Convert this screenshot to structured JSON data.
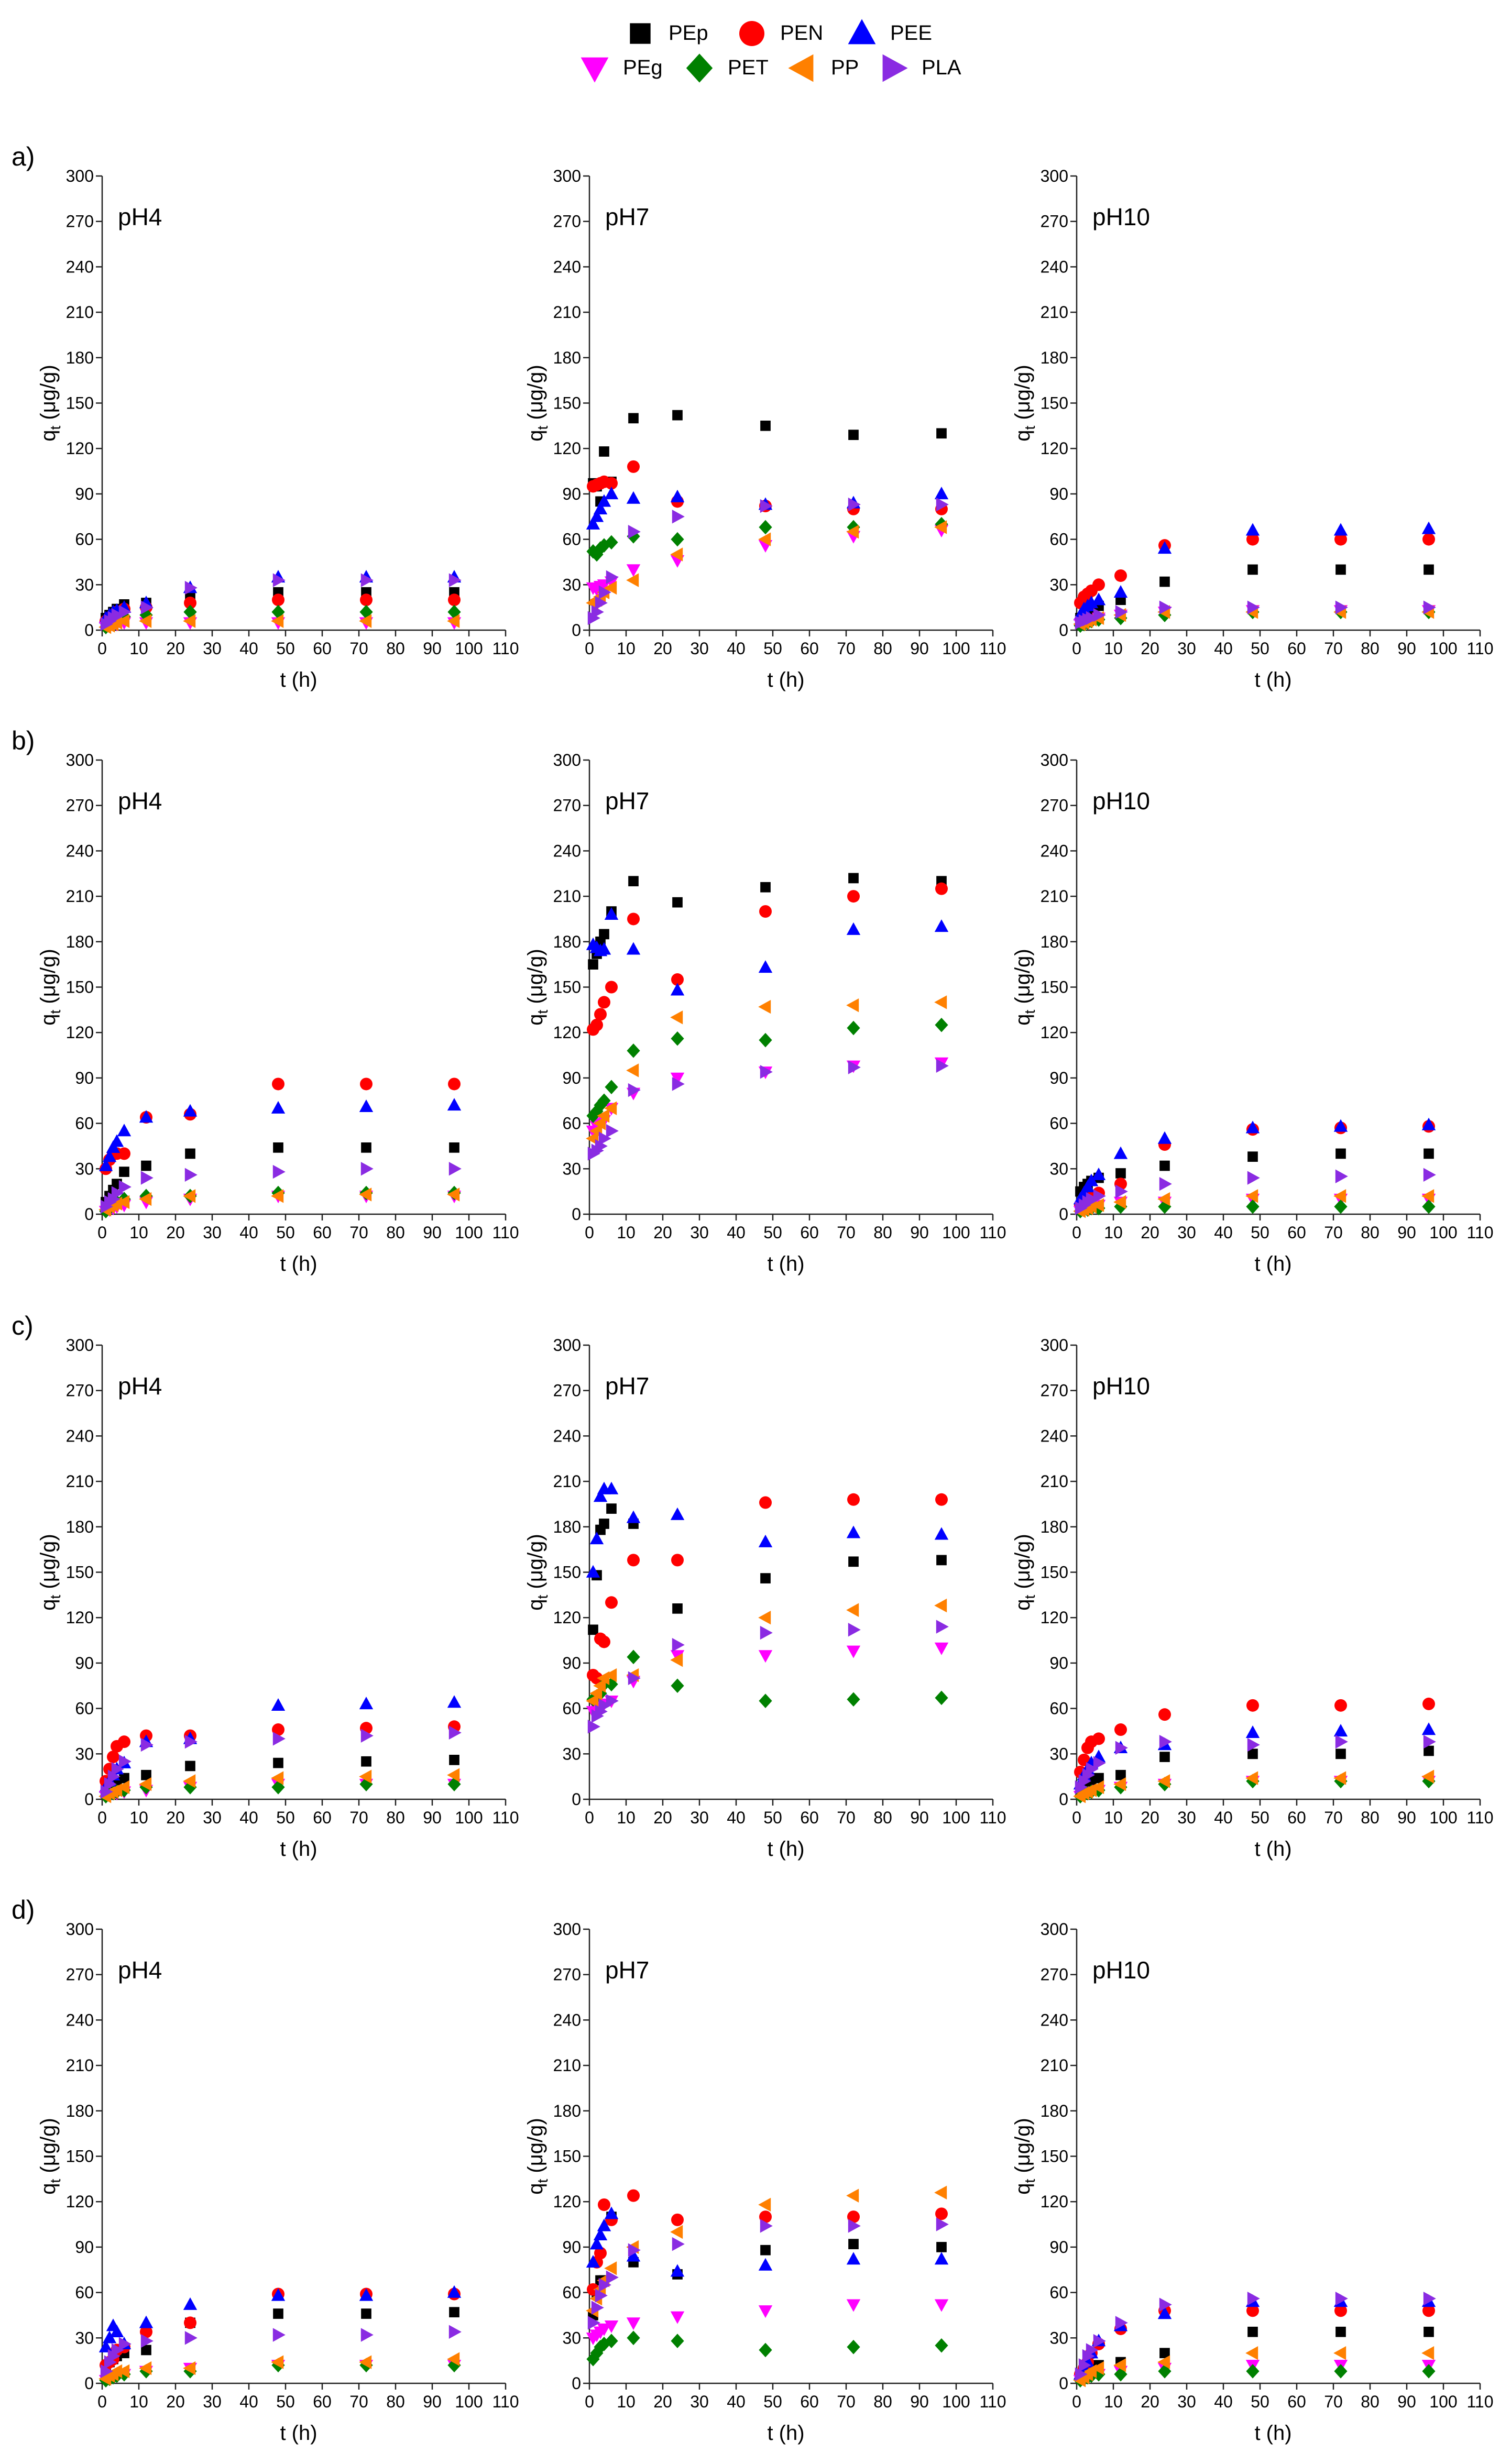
{
  "figure": {
    "legend": [
      {
        "label": "PEp",
        "color": "#000000",
        "marker": "square"
      },
      {
        "label": "PEN",
        "color": "#ff0000",
        "marker": "circle"
      },
      {
        "label": "PEE",
        "color": "#0000ff",
        "marker": "triangle-up"
      },
      {
        "label": "PEg",
        "color": "#ff00ff",
        "marker": "triangle-down"
      },
      {
        "label": "PET",
        "color": "#008000",
        "marker": "diamond"
      },
      {
        "label": "PP",
        "color": "#ff8000",
        "marker": "triangle-left"
      },
      {
        "label": "PLA",
        "color": "#8a2be2",
        "marker": "triangle-right"
      }
    ],
    "row_labels": [
      "a)",
      "b)",
      "c)",
      "d)"
    ]
  },
  "chart_data": {
    "type": "scatter",
    "xlabel": "t (h)",
    "ylabel": "qt (μg/g)",
    "ylabel_main": "q",
    "ylabel_sub": "t",
    "ylabel_rest": " (μg/g)",
    "xlim": [
      0,
      110
    ],
    "ylim": [
      0,
      300
    ],
    "xticks": [
      0,
      10,
      20,
      30,
      40,
      50,
      60,
      70,
      80,
      90,
      100,
      110
    ],
    "yticks": [
      0,
      30,
      60,
      90,
      120,
      150,
      180,
      210,
      240,
      270,
      300
    ],
    "times": [
      1,
      2,
      3,
      4,
      6,
      12,
      24,
      48,
      72,
      96
    ],
    "panels": [
      {
        "row": "a)",
        "title": "pH4",
        "series": {
          "PEp": [
            8,
            10,
            12,
            14,
            17,
            18,
            22,
            25,
            25,
            25
          ],
          "PEN": [
            6,
            8,
            10,
            12,
            14,
            15,
            18,
            20,
            20,
            20
          ],
          "PEE": [
            8,
            10,
            12,
            13,
            15,
            18,
            28,
            35,
            35,
            35
          ],
          "PEg": [
            2,
            3,
            4,
            4,
            5,
            5,
            5,
            5,
            5,
            5
          ],
          "PET": [
            2,
            4,
            6,
            8,
            9,
            10,
            12,
            12,
            12,
            12
          ],
          "PP": [
            2,
            3,
            4,
            5,
            6,
            6,
            6,
            6,
            6,
            6
          ],
          "PLA": [
            4,
            6,
            8,
            10,
            12,
            15,
            28,
            33,
            33,
            33
          ]
        }
      },
      {
        "row": "a)",
        "title": "pH7",
        "series": {
          "PEp": [
            97,
            95,
            85,
            118,
            98,
            140,
            142,
            135,
            129,
            130
          ],
          "PEN": [
            95,
            96,
            97,
            98,
            97,
            108,
            85,
            82,
            80,
            80
          ],
          "PEE": [
            70,
            75,
            80,
            85,
            90,
            87,
            88,
            83,
            84,
            90
          ],
          "PEg": [
            28,
            27,
            29,
            30,
            32,
            40,
            46,
            56,
            62,
            66
          ],
          "PET": [
            52,
            50,
            54,
            56,
            58,
            62,
            60,
            68,
            68,
            70
          ],
          "PP": [
            18,
            20,
            22,
            25,
            28,
            33,
            50,
            60,
            65,
            68
          ],
          "PLA": [
            8,
            12,
            18,
            25,
            35,
            65,
            75,
            82,
            83,
            83
          ]
        }
      },
      {
        "row": "a)",
        "title": "pH10",
        "series": {
          "PEp": [
            8,
            10,
            12,
            14,
            16,
            20,
            32,
            40,
            40,
            40
          ],
          "PEN": [
            18,
            22,
            24,
            26,
            30,
            36,
            56,
            60,
            60,
            60
          ],
          "PEE": [
            10,
            14,
            16,
            18,
            20,
            25,
            54,
            66,
            66,
            67
          ],
          "PEg": [
            4,
            5,
            6,
            7,
            8,
            10,
            12,
            13,
            13,
            13
          ],
          "PET": [
            3,
            4,
            5,
            6,
            7,
            8,
            10,
            12,
            12,
            12
          ],
          "PP": [
            4,
            5,
            6,
            7,
            8,
            10,
            12,
            12,
            12,
            12
          ],
          "PLA": [
            5,
            6,
            7,
            8,
            10,
            12,
            15,
            15,
            15,
            15
          ]
        }
      },
      {
        "row": "b)",
        "title": "pH4",
        "series": {
          "PEp": [
            8,
            12,
            16,
            20,
            28,
            32,
            40,
            44,
            44,
            44
          ],
          "PEN": [
            30,
            36,
            40,
            40,
            40,
            64,
            66,
            86,
            86,
            86
          ],
          "PEE": [
            32,
            38,
            44,
            48,
            55,
            64,
            68,
            70,
            71,
            72
          ],
          "PEg": [
            2,
            3,
            4,
            5,
            6,
            8,
            10,
            12,
            12,
            12
          ],
          "PET": [
            2,
            4,
            6,
            8,
            10,
            12,
            12,
            14,
            14,
            14
          ],
          "PP": [
            3,
            5,
            6,
            7,
            8,
            10,
            12,
            12,
            13,
            13
          ],
          "PLA": [
            5,
            8,
            10,
            14,
            18,
            24,
            26,
            28,
            30,
            30
          ]
        }
      },
      {
        "row": "b)",
        "title": "pH7",
        "series": {
          "PEp": [
            165,
            172,
            180,
            185,
            200,
            220,
            206,
            216,
            222,
            220
          ],
          "PEN": [
            122,
            125,
            132,
            140,
            150,
            195,
            155,
            200,
            210,
            215
          ],
          "PEE": [
            178,
            176,
            174,
            175,
            198,
            175,
            148,
            163,
            188,
            190
          ],
          "PEg": [
            55,
            58,
            60,
            62,
            70,
            80,
            90,
            94,
            98,
            100
          ],
          "PET": [
            65,
            68,
            72,
            75,
            84,
            108,
            116,
            115,
            123,
            125
          ],
          "PP": [
            50,
            55,
            60,
            65,
            70,
            95,
            130,
            137,
            138,
            140
          ],
          "PLA": [
            40,
            42,
            45,
            50,
            55,
            82,
            86,
            94,
            97,
            98
          ]
        }
      },
      {
        "row": "b)",
        "title": "pH10",
        "series": {
          "PEp": [
            15,
            18,
            20,
            22,
            24,
            27,
            32,
            38,
            40,
            40
          ],
          "PEN": [
            6,
            8,
            10,
            12,
            14,
            20,
            46,
            56,
            57,
            58
          ],
          "PEE": [
            10,
            14,
            18,
            22,
            26,
            40,
            50,
            57,
            58,
            59
          ],
          "PEg": [
            2,
            3,
            4,
            5,
            6,
            8,
            8,
            10,
            10,
            10
          ],
          "PET": [
            2,
            3,
            3,
            4,
            4,
            5,
            5,
            5,
            5,
            5
          ],
          "PP": [
            2,
            3,
            4,
            5,
            6,
            8,
            10,
            12,
            12,
            12
          ],
          "PLA": [
            4,
            6,
            8,
            10,
            12,
            15,
            20,
            24,
            25,
            26
          ]
        }
      },
      {
        "row": "c)",
        "title": "pH4",
        "series": {
          "PEp": [
            6,
            8,
            10,
            12,
            14,
            16,
            22,
            24,
            25,
            26
          ],
          "PEN": [
            12,
            20,
            28,
            35,
            38,
            42,
            42,
            46,
            47,
            48
          ],
          "PEE": [
            8,
            12,
            16,
            20,
            24,
            38,
            40,
            62,
            63,
            64
          ],
          "PEg": [
            2,
            3,
            4,
            4,
            5,
            6,
            8,
            10,
            10,
            10
          ],
          "PET": [
            2,
            3,
            4,
            5,
            6,
            8,
            8,
            8,
            10,
            10
          ],
          "PP": [
            2,
            4,
            5,
            6,
            8,
            10,
            12,
            14,
            15,
            16
          ],
          "PLA": [
            5,
            10,
            15,
            20,
            25,
            36,
            38,
            40,
            42,
            44
          ]
        }
      },
      {
        "row": "c)",
        "title": "pH7",
        "series": {
          "PEp": [
            112,
            148,
            178,
            182,
            192,
            182,
            126,
            146,
            157,
            158
          ],
          "PEN": [
            82,
            80,
            106,
            104,
            130,
            158,
            158,
            196,
            198,
            198
          ],
          "PEE": [
            150,
            172,
            200,
            205,
            205,
            186,
            188,
            170,
            176,
            175
          ],
          "PEg": [
            58,
            60,
            62,
            63,
            65,
            78,
            95,
            95,
            98,
            100
          ],
          "PET": [
            66,
            68,
            70,
            76,
            76,
            94,
            75,
            65,
            66,
            67
          ],
          "PP": [
            65,
            70,
            75,
            80,
            82,
            82,
            92,
            120,
            125,
            128
          ],
          "PLA": [
            48,
            55,
            58,
            62,
            65,
            80,
            102,
            110,
            112,
            114
          ]
        }
      },
      {
        "row": "c)",
        "title": "pH10",
        "series": {
          "PEp": [
            6,
            8,
            10,
            12,
            14,
            16,
            28,
            30,
            30,
            32
          ],
          "PEN": [
            18,
            26,
            34,
            38,
            40,
            46,
            56,
            62,
            62,
            63
          ],
          "PEE": [
            10,
            16,
            20,
            24,
            28,
            34,
            36,
            44,
            45,
            46
          ],
          "PEg": [
            2,
            3,
            4,
            5,
            6,
            8,
            10,
            12,
            12,
            12
          ],
          "PET": [
            2,
            3,
            4,
            5,
            6,
            8,
            10,
            12,
            12,
            12
          ],
          "PP": [
            2,
            4,
            5,
            6,
            8,
            10,
            12,
            14,
            14,
            15
          ],
          "PLA": [
            8,
            12,
            16,
            20,
            24,
            34,
            38,
            36,
            38,
            38
          ]
        }
      },
      {
        "row": "d)",
        "title": "pH4",
        "series": {
          "PEp": [
            10,
            14,
            16,
            18,
            20,
            22,
            40,
            46,
            46,
            47
          ],
          "PEN": [
            12,
            14,
            16,
            22,
            24,
            34,
            40,
            59,
            59,
            59
          ],
          "PEE": [
            24,
            30,
            38,
            34,
            26,
            40,
            52,
            58,
            58,
            60
          ],
          "PEg": [
            2,
            3,
            4,
            5,
            6,
            8,
            10,
            12,
            12,
            12
          ],
          "PET": [
            2,
            3,
            4,
            5,
            6,
            8,
            8,
            12,
            12,
            12
          ],
          "PP": [
            3,
            5,
            6,
            8,
            8,
            10,
            10,
            14,
            14,
            16
          ],
          "PLA": [
            8,
            14,
            18,
            22,
            26,
            28,
            30,
            32,
            32,
            34
          ]
        }
      },
      {
        "row": "d)",
        "title": "pH7",
        "series": {
          "PEp": [
            45,
            60,
            68,
            68,
            110,
            80,
            72,
            88,
            92,
            90
          ],
          "PEN": [
            62,
            80,
            86,
            118,
            108,
            124,
            108,
            110,
            110,
            112
          ],
          "PEE": [
            80,
            92,
            98,
            104,
            112,
            84,
            74,
            78,
            82,
            82
          ],
          "PEg": [
            30,
            32,
            34,
            36,
            38,
            40,
            44,
            48,
            52,
            52
          ],
          "PET": [
            16,
            20,
            24,
            26,
            28,
            30,
            28,
            22,
            24,
            25
          ],
          "PP": [
            48,
            56,
            62,
            68,
            76,
            90,
            100,
            118,
            124,
            126
          ],
          "PLA": [
            40,
            50,
            58,
            65,
            70,
            88,
            92,
            104,
            104,
            105
          ]
        }
      },
      {
        "row": "d)",
        "title": "pH10",
        "series": {
          "PEp": [
            4,
            6,
            8,
            10,
            12,
            14,
            20,
            34,
            34,
            34
          ],
          "PEN": [
            6,
            10,
            14,
            20,
            26,
            36,
            48,
            48,
            48,
            48
          ],
          "PEE": [
            6,
            10,
            14,
            20,
            28,
            38,
            46,
            54,
            54,
            54
          ],
          "PEg": [
            2,
            3,
            4,
            5,
            6,
            8,
            10,
            12,
            12,
            12
          ],
          "PET": [
            2,
            3,
            4,
            5,
            6,
            6,
            8,
            8,
            8,
            8
          ],
          "PP": [
            2,
            4,
            6,
            8,
            10,
            12,
            14,
            20,
            20,
            20
          ],
          "PLA": [
            6,
            12,
            18,
            22,
            28,
            40,
            52,
            56,
            56,
            56
          ]
        }
      }
    ]
  }
}
